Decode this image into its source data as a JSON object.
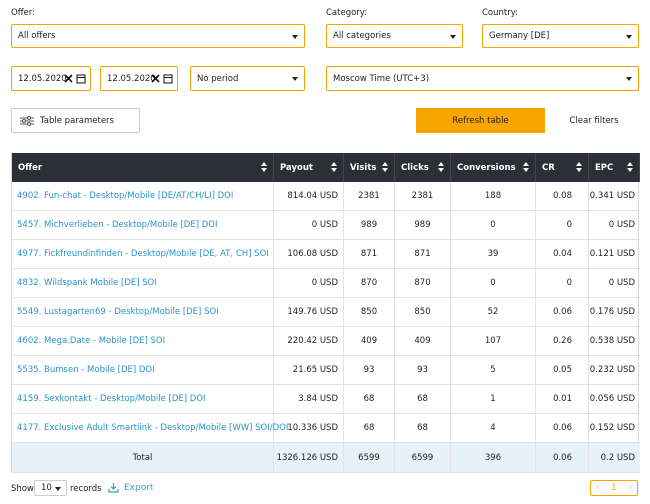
{
  "filters": {
    "offer": {
      "label": "Offer:",
      "value": "All offers"
    },
    "category": {
      "label": "Category:",
      "value": "All categories"
    },
    "country": {
      "label": "Country:",
      "value": "Germany [DE]"
    },
    "date_from": "12.05.2020",
    "date_to": "12.05.2020",
    "period": "No period",
    "timezone": "Moscow Time (UTC+3)"
  },
  "buttons": {
    "table_parameters": "Table parameters",
    "refresh": "Refresh table",
    "clear": "Clear filters"
  },
  "table": {
    "columns": [
      "Offer",
      "Payout",
      "Visits",
      "Clicks",
      "Conversions",
      "CR",
      "EPC"
    ],
    "rows": [
      [
        "4902. Fun-chat - Desktop/Mobile [DE/AT/CH/LI] DOI",
        "814.04 USD",
        "2381",
        "2381",
        "188",
        "0.08",
        "0.341 USD"
      ],
      [
        "5457. Michverlieben - Desktop/Mobile [DE] DOI",
        "0 USD",
        "989",
        "989",
        "0",
        "0",
        "0 USD"
      ],
      [
        "4977. Fickfreundinfinden - Desktop/Mobile [DE, AT, CH] SOI",
        "106.08 USD",
        "871",
        "871",
        "39",
        "0.04",
        "0.121 USD"
      ],
      [
        "4832. Wildspank Mobile [DE] SOI",
        "0 USD",
        "870",
        "870",
        "0",
        "0",
        "0 USD"
      ],
      [
        "5549. Lustagarten69 - Desktop/Mobile [DE] SOI",
        "149.76 USD",
        "850",
        "850",
        "52",
        "0.06",
        "0.176 USD"
      ],
      [
        "4602. Mega.Date - Mobile [DE] SOI",
        "220.42 USD",
        "409",
        "409",
        "107",
        "0.26",
        "0.538 USD"
      ],
      [
        "5535. Bumsen - Mobile [DE] DOI",
        "21.65 USD",
        "93",
        "93",
        "5",
        "0.05",
        "0.232 USD"
      ],
      [
        "4159. Sexkontakt - Desktop/Mobile [DE] DOI",
        "3.84 USD",
        "68",
        "68",
        "1",
        "0.01",
        "0.056 USD"
      ],
      [
        "4177. Exclusive Adult Smartlink - Desktop/Mobile [WW] SOI/DOI",
        "10.336 USD",
        "68",
        "68",
        "4",
        "0.06",
        "0.152 USD"
      ]
    ],
    "total": [
      "Total",
      "1326.126 USD",
      "6599",
      "6599",
      "396",
      "0.06",
      "0.2 USD"
    ]
  },
  "footer": {
    "show": "Show",
    "records_value": "10",
    "records": "records",
    "export": "Export",
    "page": "1"
  }
}
